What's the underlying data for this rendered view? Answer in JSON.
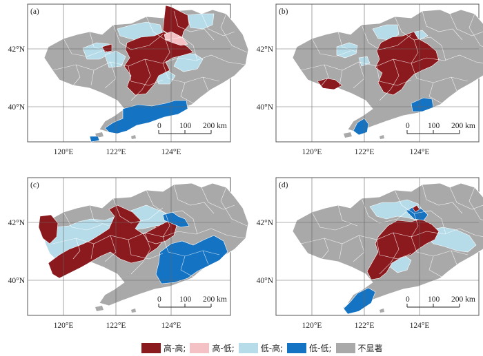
{
  "panels": [
    {
      "label": "(a)"
    },
    {
      "label": "(b)"
    },
    {
      "label": "(c)"
    },
    {
      "label": "(d)"
    }
  ],
  "axes": {
    "lon_labels": [
      "120°E",
      "122°E",
      "124°E"
    ],
    "lat_labels": [
      "42°N",
      "40°N"
    ]
  },
  "scale_bar": {
    "ticks": [
      "0",
      "100",
      "200 km"
    ]
  },
  "legend": [
    {
      "label": "高-高;",
      "color": "#8b1a1e"
    },
    {
      "label": "高-低;",
      "color": "#f4c2c4"
    },
    {
      "label": "低-高;",
      "color": "#b6dcea"
    },
    {
      "label": "低-低;",
      "color": "#1473c2"
    },
    {
      "label": "不显著",
      "color": "#a9a9a9"
    }
  ]
}
